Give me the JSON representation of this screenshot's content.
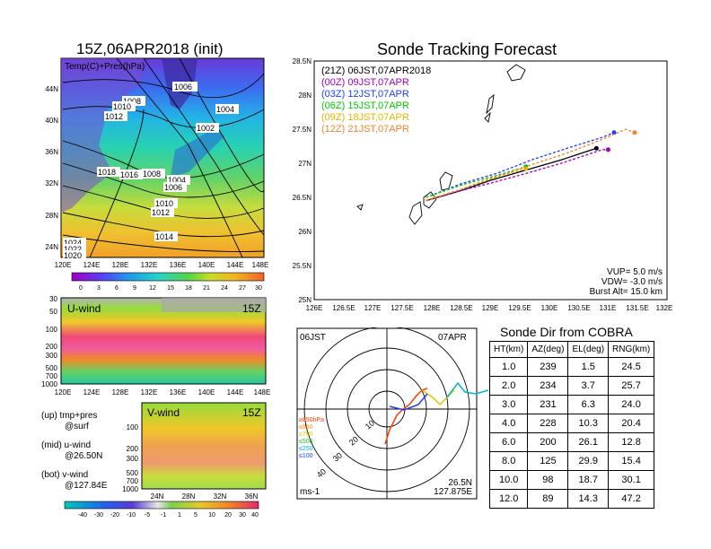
{
  "panel_titles": {
    "left_main": "15Z,06APR2018 (init)",
    "right_main": "Sonde Tracking Forecast",
    "dir_table": "Sonde Dir from COBRA"
  },
  "left_map": {
    "inset_label": "Temp(C)+Pres(hPa)",
    "lat_labels": [
      "44N",
      "40N",
      "36N",
      "32N",
      "28N",
      "24N"
    ],
    "lon_labels": [
      "120E",
      "124E",
      "128E",
      "132E",
      "136E",
      "140E",
      "144E",
      "148E"
    ],
    "colorbar_labels": [
      "0",
      "3",
      "6",
      "9",
      "12",
      "15",
      "18",
      "21",
      "24",
      "27",
      "30"
    ],
    "isobar_labels": [
      "1006",
      "1008",
      "1010",
      "1012",
      "1004",
      "1002",
      "1018",
      "1016",
      "1008",
      "1004",
      "1006",
      "1010",
      "1012",
      "1014",
      "1024",
      "1022",
      "1020"
    ]
  },
  "u_wind": {
    "label": "U-wind",
    "time": "15Z",
    "y_labels": [
      "30",
      "50",
      "100",
      "200",
      "300",
      "500",
      "700",
      "1000"
    ],
    "x_labels": [
      "120E",
      "124E",
      "128E",
      "132E",
      "136E",
      "140E",
      "144E",
      "148E"
    ]
  },
  "v_wind": {
    "label": "V-wind",
    "time": "15Z",
    "y_labels": [
      "100",
      "200",
      "300",
      "500",
      "700",
      "1000"
    ],
    "x_labels": [
      "24N",
      "28N",
      "32N",
      "36N"
    ],
    "colorbar_labels": [
      "-40",
      "-30",
      "-20",
      "-10",
      "-5",
      "-1",
      "1",
      "5",
      "10",
      "20",
      "30",
      "40"
    ]
  },
  "legend_notes": {
    "up": "(up) tmp+pres",
    "up2": "@surf",
    "mid": "(mid) u-wind",
    "mid2": "@26.50N",
    "bot": "(bot) v-wind",
    "bot2": "@127.84E"
  },
  "track_legend": [
    {
      "text": "(21Z) 06JST,07APR2018",
      "color": "#000000"
    },
    {
      "text": "(00Z) 09JST,07APR",
      "color": "#a000c8"
    },
    {
      "text": "(03Z) 12JST,07APR",
      "color": "#1e3cff"
    },
    {
      "text": "(06Z) 15JST,07APR",
      "color": "#00c800"
    },
    {
      "text": "(09Z) 18JST,07APR",
      "color": "#e6b400"
    },
    {
      "text": "(12Z) 21JST,07APR",
      "color": "#f08228"
    }
  ],
  "track_params": {
    "vup": "VUP=  5.0  m/s",
    "vdw": "VDW= -3.0  m/s",
    "burst": "Burst Alt=  15.0  km"
  },
  "polar": {
    "time_left": "06JST",
    "time_right": "07APR",
    "unit": "ms-1",
    "lat": "26.5N",
    "lon": "127.875E",
    "ring_labels": [
      "10",
      "20",
      "30",
      "40"
    ],
    "levels": [
      {
        "text": "≥850hPa",
        "color": "#ff3c00"
      },
      {
        "text": "≤850",
        "color": "#ff8c00"
      },
      {
        "text": "≤700",
        "color": "#e6c800"
      },
      {
        "text": "≤500",
        "color": "#28c828"
      },
      {
        "text": "≤250",
        "color": "#00b4d2"
      },
      {
        "text": "≤100",
        "color": "#1e3cff"
      }
    ]
  },
  "dir_table": {
    "headers": [
      "HT(km)",
      "AZ(deg)",
      "EL(deg)",
      "RNG(km)"
    ],
    "rows": [
      [
        "1.0",
        "239",
        "1.5",
        "24.5"
      ],
      [
        "2.0",
        "234",
        "3.7",
        "25.7"
      ],
      [
        "3.0",
        "231",
        "6.3",
        "24.0"
      ],
      [
        "4.0",
        "228",
        "10.3",
        "20.4"
      ],
      [
        "6.0",
        "200",
        "26.1",
        "12.8"
      ],
      [
        "8.0",
        "125",
        "29.9",
        "15.4"
      ],
      [
        "10.0",
        "98",
        "18.7",
        "30.1"
      ],
      [
        "12.0",
        "89",
        "14.3",
        "47.2"
      ]
    ]
  },
  "chart_data": [
    {
      "type": "line",
      "title": "Sonde Tracking Forecast",
      "xlim": [
        126,
        132
      ],
      "ylim": [
        25,
        28.5
      ],
      "x_ticks": [
        "126E",
        "126.5E",
        "127E",
        "127.5E",
        "128E",
        "128.5E",
        "129E",
        "129.5E",
        "130E",
        "130.5E",
        "131E",
        "131.5E",
        "132E"
      ],
      "y_ticks": [
        "25N",
        "25.5N",
        "26N",
        "26.5N",
        "27N",
        "27.5N",
        "28N",
        "28.5N"
      ],
      "series": [
        {
          "name": "(21Z) 06JST,07APR2018",
          "color": "#000000",
          "lon": [
            127.9,
            128.5,
            129.0,
            129.6,
            130.2,
            130.8
          ],
          "lat": [
            26.45,
            26.6,
            26.75,
            26.9,
            27.05,
            27.22
          ]
        },
        {
          "name": "(00Z) 09JST,07APR",
          "color": "#a000c8",
          "lon": [
            127.9,
            128.5,
            129.05,
            129.6,
            130.2,
            130.9,
            131.0
          ],
          "lat": [
            26.45,
            26.6,
            26.72,
            26.85,
            27.0,
            27.2,
            27.2
          ]
        },
        {
          "name": "(03Z) 12JST,07APR",
          "color": "#1e3cff",
          "lon": [
            127.9,
            128.5,
            129.1,
            129.7,
            130.3,
            130.9,
            131.1
          ],
          "lat": [
            26.5,
            26.7,
            26.85,
            27.05,
            27.22,
            27.38,
            27.45
          ]
        },
        {
          "name": "(06Z) 15JST,07APR",
          "color": "#00c800",
          "lon": [
            127.9,
            128.5,
            129.1,
            129.6
          ],
          "lat": [
            26.5,
            26.68,
            26.82,
            26.95
          ]
        },
        {
          "name": "(09Z) 18JST,07APR",
          "color": "#e6b400",
          "lon": [
            127.9,
            128.5,
            129.0,
            129.6
          ],
          "lat": [
            26.46,
            26.62,
            26.78,
            26.92
          ]
        },
        {
          "name": "(12Z) 21JST,07APR",
          "color": "#f08228",
          "lon": [
            127.9,
            128.5,
            129.1,
            129.7,
            130.3,
            130.9,
            131.3,
            131.45
          ],
          "lat": [
            26.45,
            26.62,
            26.8,
            26.98,
            27.15,
            27.35,
            27.5,
            27.45
          ]
        }
      ]
    },
    {
      "type": "table",
      "title": "Sonde Dir from COBRA",
      "columns": [
        "HT(km)",
        "AZ(deg)",
        "EL(deg)",
        "RNG(km)"
      ],
      "rows": [
        [
          1.0,
          239,
          1.5,
          24.5
        ],
        [
          2.0,
          234,
          3.7,
          25.7
        ],
        [
          3.0,
          231,
          6.3,
          24.0
        ],
        [
          4.0,
          228,
          10.3,
          20.4
        ],
        [
          6.0,
          200,
          26.1,
          12.8
        ],
        [
          8.0,
          125,
          29.9,
          15.4
        ],
        [
          10.0,
          98,
          18.7,
          30.1
        ],
        [
          12.0,
          89,
          14.3,
          47.2
        ]
      ]
    }
  ]
}
